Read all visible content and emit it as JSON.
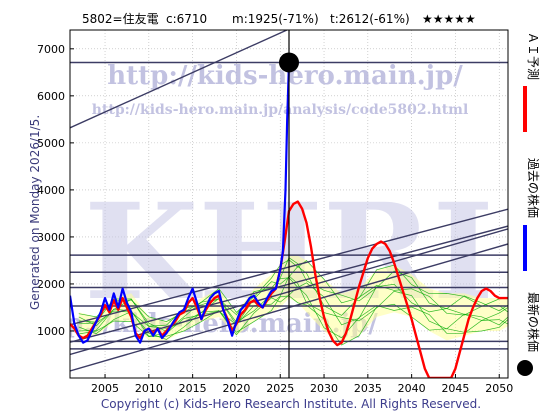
{
  "header": {
    "code_name": "5802=住友電",
    "current": "c:6710",
    "mid": "m:1925(-71%)",
    "target": "t:2612(-61%)",
    "stars": "★★★★★"
  },
  "generated_text": "Generated on Monday 2026/1/5.",
  "copyright": "Copyright (c) Kids-Hero Research Institute. All Rights Reserved.",
  "watermark": {
    "url_main": "http://kids-hero.main.jp/",
    "url_analysis": "http://kids-hero.main.jp/analysis/code5802.html",
    "logo": "KHRI"
  },
  "legend_right": [
    {
      "label": "ＡＩ予測",
      "marker": "red-line",
      "color": "#ff0000"
    },
    {
      "label": "過去の株価",
      "marker": "blue-line",
      "color": "#0000ff"
    },
    {
      "label": "最新の株価",
      "marker": "black-dot",
      "color": "#000000"
    }
  ],
  "colors": {
    "price": "#0000ff",
    "forecast": "#ff0000",
    "band_fill": "#ffff99",
    "band_line": "#00aa00",
    "trend_line": "#3c3c64",
    "grid": "#b4b4b4"
  },
  "chart_data": {
    "type": "line",
    "xlim": [
      2001,
      2051
    ],
    "ylim": [
      0,
      7400
    ],
    "x_ticks": [
      2005,
      2010,
      2015,
      2020,
      2025,
      2030,
      2035,
      2040,
      2045,
      2050
    ],
    "y_ticks": [
      1000,
      2000,
      3000,
      4000,
      5000,
      6000,
      7000
    ],
    "grid": true,
    "latest_point": {
      "x": 2026.0,
      "y": 6710
    },
    "horizontal_levels": [
      6710,
      2612,
      2250,
      1925,
      1530,
      780,
      620
    ],
    "trend_lines": [
      {
        "x": [
          2001,
          2051
        ],
        "y": [
          5320,
          9520
        ]
      },
      {
        "x": [
          2001,
          2051
        ],
        "y": [
          1130,
          3590
        ]
      },
      {
        "x": [
          2001,
          2051
        ],
        "y": [
          760,
          3230
        ]
      },
      {
        "x": [
          2001,
          2051
        ],
        "y": [
          500,
          3170
        ]
      },
      {
        "x": [
          2001,
          2051
        ],
        "y": [
          150,
          2850
        ]
      }
    ],
    "series": [
      {
        "name": "過去の株価",
        "x": [
          2001.0,
          2001.5,
          2002.0,
          2002.5,
          2003.0,
          2003.5,
          2004.0,
          2004.5,
          2005.0,
          2005.5,
          2006.0,
          2006.5,
          2007.0,
          2007.5,
          2008.0,
          2008.5,
          2009.0,
          2009.5,
          2010.0,
          2010.5,
          2011.0,
          2011.5,
          2012.0,
          2012.5,
          2013.0,
          2013.5,
          2014.0,
          2014.5,
          2015.0,
          2015.5,
          2016.0,
          2016.5,
          2017.0,
          2017.5,
          2018.0,
          2018.5,
          2019.0,
          2019.5,
          2020.0,
          2020.5,
          2021.0,
          2021.5,
          2022.0,
          2022.5,
          2023.0,
          2023.5,
          2024.0,
          2024.5,
          2025.0,
          2025.3,
          2025.6,
          2025.8,
          2026.0
        ],
        "y": [
          1750,
          1150,
          900,
          750,
          800,
          1000,
          1200,
          1400,
          1700,
          1450,
          1800,
          1500,
          1900,
          1600,
          1400,
          900,
          750,
          1000,
          1050,
          900,
          1050,
          850,
          950,
          1100,
          1250,
          1400,
          1450,
          1700,
          1900,
          1600,
          1250,
          1500,
          1700,
          1800,
          1850,
          1450,
          1200,
          900,
          1200,
          1450,
          1550,
          1700,
          1750,
          1600,
          1500,
          1700,
          1850,
          1900,
          2300,
          2700,
          4000,
          5500,
          6710
        ]
      },
      {
        "name": "ＡＩ予測",
        "x": [
          2001.0,
          2001.5,
          2002.0,
          2002.5,
          2003.0,
          2003.5,
          2004.0,
          2004.5,
          2005.0,
          2005.5,
          2006.0,
          2006.5,
          2007.0,
          2007.5,
          2008.0,
          2008.5,
          2009.0,
          2009.5,
          2010.0,
          2010.5,
          2011.0,
          2011.5,
          2012.0,
          2012.5,
          2013.0,
          2013.5,
          2014.0,
          2014.5,
          2015.0,
          2015.5,
          2016.0,
          2016.5,
          2017.0,
          2017.5,
          2018.0,
          2018.5,
          2019.0,
          2019.5,
          2020.0,
          2020.5,
          2021.0,
          2021.5,
          2022.0,
          2022.5,
          2023.0,
          2023.5,
          2024.0,
          2024.5,
          2025.0,
          2025.5,
          2026.0,
          2026.5,
          2027.0,
          2027.5,
          2028.0,
          2028.5,
          2029.0,
          2029.5,
          2030.0,
          2030.5,
          2031.0,
          2031.5,
          2032.0,
          2032.5,
          2033.0,
          2033.5,
          2034.0,
          2034.5,
          2035.0,
          2035.5,
          2036.0,
          2036.5,
          2037.0,
          2037.5,
          2038.0,
          2038.5,
          2039.0,
          2039.5,
          2040.0,
          2040.5,
          2041.0,
          2041.5,
          2042.0,
          2042.5,
          2043.0,
          2043.5,
          2044.0,
          2044.5,
          2045.0,
          2045.5,
          2046.0,
          2046.5,
          2047.0,
          2047.5,
          2048.0,
          2048.5,
          2049.0,
          2049.5,
          2050.0,
          2050.5,
          2051.0
        ],
        "y": [
          1150,
          1050,
          900,
          850,
          900,
          1050,
          1200,
          1350,
          1550,
          1400,
          1650,
          1450,
          1700,
          1500,
          1300,
          950,
          850,
          1000,
          1050,
          950,
          1050,
          900,
          1000,
          1100,
          1200,
          1350,
          1400,
          1600,
          1700,
          1500,
          1250,
          1450,
          1600,
          1700,
          1750,
          1450,
          1250,
          1000,
          1150,
          1350,
          1450,
          1600,
          1650,
          1550,
          1500,
          1650,
          1800,
          1900,
          2300,
          2900,
          3550,
          3700,
          3750,
          3600,
          3300,
          2800,
          2200,
          1700,
          1300,
          1000,
          800,
          700,
          750,
          950,
          1250,
          1600,
          1950,
          2250,
          2550,
          2750,
          2850,
          2900,
          2850,
          2700,
          2450,
          2150,
          1850,
          1550,
          1250,
          900,
          550,
          200,
          0,
          0,
          0,
          0,
          0,
          0,
          200,
          550,
          900,
          1250,
          1500,
          1700,
          1850,
          1900,
          1850,
          1750,
          1700,
          1700,
          1700
        ]
      }
    ],
    "band": {
      "x": [
        2002,
        2004,
        2006,
        2008,
        2010,
        2012,
        2014,
        2016,
        2018,
        2020,
        2022,
        2024,
        2025,
        2026,
        2027,
        2028,
        2030,
        2032,
        2034,
        2036,
        2038,
        2040,
        2042,
        2044,
        2046,
        2048,
        2050,
        2051
      ],
      "upper": [
        1400,
        1300,
        1700,
        1800,
        1300,
        1200,
        1500,
        1700,
        1900,
        1400,
        1900,
        2200,
        2400,
        2600,
        2600,
        2500,
        2100,
        1800,
        1900,
        2300,
        2400,
        2200,
        1900,
        1800,
        1800,
        1700,
        1700,
        1700
      ],
      "lower": [
        900,
        900,
        1200,
        1200,
        800,
        800,
        1000,
        1200,
        1300,
        900,
        1200,
        1400,
        1500,
        1700,
        1600,
        1400,
        1000,
        700,
        900,
        1300,
        1400,
        1300,
        1000,
        800,
        900,
        1000,
        1000,
        1100
      ]
    }
  }
}
